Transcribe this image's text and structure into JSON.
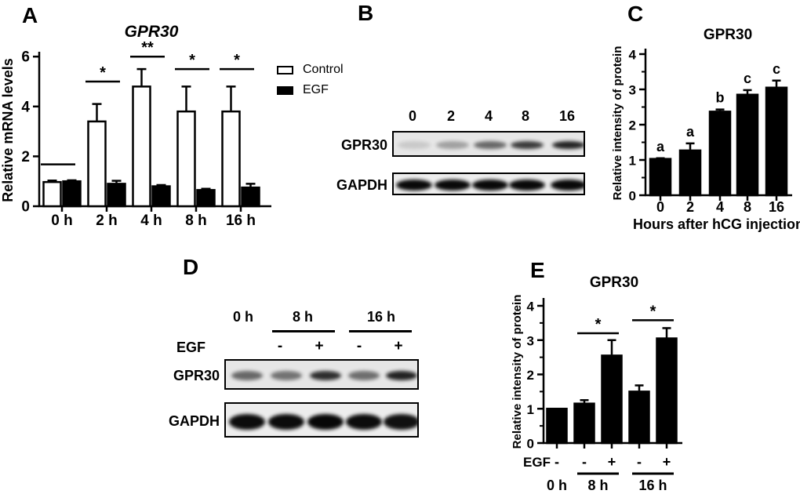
{
  "panels": {
    "a": "A",
    "b": "B",
    "c": "C",
    "d": "D",
    "e": "E"
  },
  "chart_data": [
    {
      "id": "chart-a",
      "panel": "A",
      "type": "bar",
      "title": "GPR30",
      "title_style": "bold-italic",
      "ylabel": "Relative mRNA levels",
      "xlabel": "",
      "categories": [
        "0 h",
        "2 h",
        "4 h",
        "8 h",
        "16 h"
      ],
      "series": [
        {
          "name": "Control",
          "fill": "#ffffff",
          "values": [
            0.97,
            3.4,
            4.8,
            3.8,
            3.8
          ],
          "errors_up": [
            0.06,
            0.7,
            0.7,
            1.0,
            1.0
          ]
        },
        {
          "name": "EGF",
          "fill": "#000000",
          "values": [
            1.0,
            0.9,
            0.8,
            0.65,
            0.75
          ],
          "errors_up": [
            0.04,
            0.12,
            0.05,
            0.05,
            0.15
          ]
        }
      ],
      "ylim": [
        0,
        6
      ],
      "yticks": [
        0,
        2,
        4,
        6
      ],
      "grid": false,
      "legend_position": "right",
      "significance": [
        {
          "group": 0,
          "label": "",
          "line_y": 1.68
        },
        {
          "group": 1,
          "label": "*",
          "line_y": 5.0
        },
        {
          "group": 2,
          "label": "**",
          "line_y": 6.0
        },
        {
          "group": 3,
          "label": "*",
          "line_y": 5.5
        },
        {
          "group": 4,
          "label": "*",
          "line_y": 5.5
        }
      ]
    },
    {
      "id": "chart-c",
      "panel": "C",
      "type": "bar",
      "title": "GPR30",
      "ylabel": "Relative intensity of protein",
      "xlabel": "Hours after hCG injection",
      "categories": [
        "0",
        "2",
        "4",
        "8",
        "16"
      ],
      "values": [
        1.03,
        1.27,
        2.37,
        2.85,
        3.05
      ],
      "errors_up": [
        0.02,
        0.2,
        0.06,
        0.13,
        0.2
      ],
      "bar_letters": [
        "a",
        "a",
        "b",
        "c",
        "c"
      ],
      "bar_fill": "#000000",
      "ylim": [
        0,
        4
      ],
      "yticks": [
        0,
        1,
        2,
        3,
        4
      ],
      "grid": false
    },
    {
      "id": "chart-e",
      "panel": "E",
      "type": "bar",
      "title": "GPR30",
      "ylabel": "Relative intensity of protein",
      "xlabel": "",
      "values": [
        1.0,
        1.15,
        2.55,
        1.5,
        3.05
      ],
      "errors_up": [
        0,
        0.1,
        0.45,
        0.18,
        0.3
      ],
      "bar_fill": "#000000",
      "ylim": [
        0,
        4
      ],
      "yticks": [
        0,
        1,
        2,
        3,
        4
      ],
      "grid": false,
      "x_sign_row": {
        "label": "EGF",
        "signs": [
          "-",
          "-",
          "+",
          "-",
          "+"
        ]
      },
      "x_groups": [
        {
          "label": "0 h",
          "bars": [
            0
          ],
          "underline": false
        },
        {
          "label": "8 h",
          "bars": [
            1,
            2
          ],
          "underline": true
        },
        {
          "label": "16 h",
          "bars": [
            3,
            4
          ],
          "underline": true
        }
      ],
      "significance": [
        {
          "bars": [
            1,
            2
          ],
          "label": "*",
          "line_y": 3.2
        },
        {
          "bars": [
            3,
            4
          ],
          "label": "*",
          "line_y": 3.58
        }
      ]
    }
  ],
  "blots": {
    "b": {
      "lane_labels": [
        "0",
        "2",
        "4",
        "8",
        "16"
      ],
      "rows": [
        {
          "label": "GPR30",
          "band_intensities": [
            0.12,
            0.3,
            0.55,
            0.75,
            0.85
          ]
        },
        {
          "label": "GAPDH",
          "band_intensities": [
            0.96,
            0.96,
            0.96,
            0.96,
            0.96
          ]
        }
      ]
    },
    "d": {
      "time_labels": [
        "0 h",
        "8 h",
        "16 h"
      ],
      "egf_label": "EGF",
      "egf_signs": [
        "-",
        "+",
        "-",
        "+"
      ],
      "rows": [
        {
          "label": "GPR30",
          "band_intensities": [
            0.55,
            0.5,
            0.8,
            0.52,
            0.85
          ]
        },
        {
          "label": "GAPDH",
          "band_intensities": [
            0.95,
            0.95,
            0.97,
            0.95,
            0.93
          ]
        }
      ]
    }
  },
  "colors": {
    "ink": "#000000",
    "blot_bg": "#e6e6e6",
    "blot_bg_light": "#ededed"
  }
}
